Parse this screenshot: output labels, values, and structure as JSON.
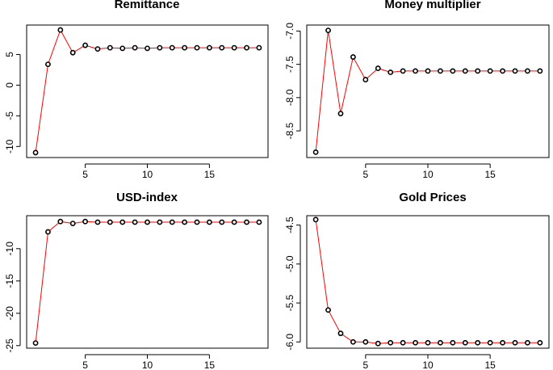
{
  "chart_data": [
    {
      "type": "line",
      "title": "Remittance",
      "xlabel": "",
      "ylabel": "",
      "x": [
        1,
        2,
        3,
        4,
        5,
        6,
        7,
        8,
        9,
        10,
        11,
        12,
        13,
        14,
        15,
        16,
        17,
        18,
        19
      ],
      "values": [
        -11.0,
        3.4,
        9.0,
        5.3,
        6.5,
        5.9,
        6.1,
        6.0,
        6.1,
        6.0,
        6.1,
        6.1,
        6.1,
        6.1,
        6.1,
        6.1,
        6.1,
        6.1,
        6.1
      ],
      "xlim": [
        0.28,
        19.72
      ],
      "ylim": [
        -11.8,
        9.8
      ],
      "xticks": [
        5,
        10,
        15
      ],
      "yticks": [
        -10,
        -5,
        0,
        5
      ],
      "marker_color": "#000000",
      "line_color": "#ff0000"
    },
    {
      "type": "line",
      "title": "Money multiplier",
      "xlabel": "",
      "ylabel": "",
      "x": [
        1,
        2,
        3,
        4,
        5,
        6,
        7,
        8,
        9,
        10,
        11,
        12,
        13,
        14,
        15,
        16,
        17,
        18,
        19
      ],
      "values": [
        -8.82,
        -6.99,
        -8.24,
        -7.39,
        -7.73,
        -7.56,
        -7.62,
        -7.6,
        -7.6,
        -7.6,
        -7.6,
        -7.6,
        -7.6,
        -7.6,
        -7.6,
        -7.6,
        -7.6,
        -7.6,
        -7.6
      ],
      "xlim": [
        0.28,
        19.72
      ],
      "ylim": [
        -8.9,
        -6.91
      ],
      "xticks": [
        5,
        10,
        15
      ],
      "yticks": [
        -8.5,
        -8.0,
        -7.5,
        -7.0
      ],
      "ytick_labels": [
        "-8.5",
        "-8.0",
        "-7.5",
        "-7.0"
      ],
      "marker_color": "#000000",
      "line_color": "#ff0000"
    },
    {
      "type": "line",
      "title": "USD-index",
      "xlabel": "",
      "ylabel": "",
      "x": [
        1,
        2,
        3,
        4,
        5,
        6,
        7,
        8,
        9,
        10,
        11,
        12,
        13,
        14,
        15,
        16,
        17,
        18,
        19
      ],
      "values": [
        -24.6,
        -7.4,
        -5.8,
        -6.1,
        -5.8,
        -5.9,
        -5.9,
        -5.9,
        -5.9,
        -5.9,
        -5.9,
        -5.9,
        -5.9,
        -5.9,
        -5.9,
        -5.9,
        -5.9,
        -5.9,
        -5.9
      ],
      "xlim": [
        0.28,
        19.72
      ],
      "ylim": [
        -25.4,
        -4.9
      ],
      "xticks": [
        5,
        10,
        15
      ],
      "yticks": [
        -25,
        -20,
        -15,
        -10
      ],
      "marker_color": "#000000",
      "line_color": "#ff0000"
    },
    {
      "type": "line",
      "title": "Gold Prices",
      "xlabel": "",
      "ylabel": "",
      "x": [
        1,
        2,
        3,
        4,
        5,
        6,
        7,
        8,
        9,
        10,
        11,
        12,
        13,
        14,
        15,
        16,
        17,
        18,
        19
      ],
      "values": [
        -4.43,
        -5.59,
        -5.89,
        -6.0,
        -6.0,
        -6.02,
        -6.01,
        -6.01,
        -6.01,
        -6.01,
        -6.01,
        -6.01,
        -6.01,
        -6.01,
        -6.01,
        -6.01,
        -6.01,
        -6.01,
        -6.01
      ],
      "xlim": [
        0.28,
        19.72
      ],
      "ylim": [
        -6.08,
        -4.38
      ],
      "xticks": [
        5,
        10,
        15
      ],
      "yticks": [
        -6.0,
        -5.5,
        -5.0,
        -4.5
      ],
      "ytick_labels": [
        "-6.0",
        "-5.5",
        "-5.0",
        "-4.5"
      ],
      "marker_color": "#000000",
      "line_color": "#ff0000"
    }
  ]
}
